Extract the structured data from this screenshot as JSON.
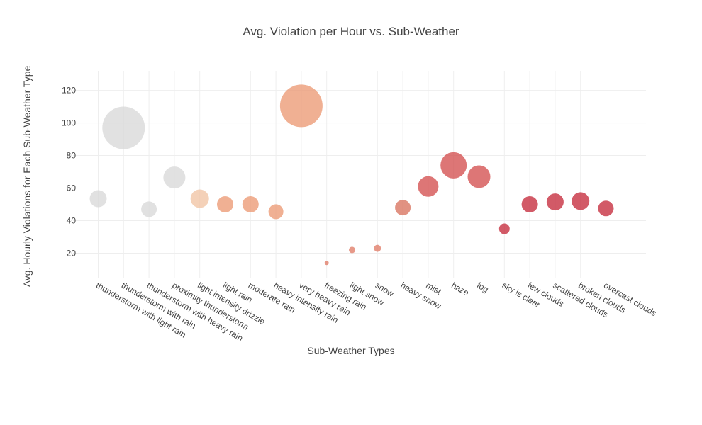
{
  "chart_data": {
    "type": "scatter",
    "title": "Avg. Violation per Hour vs. Sub-Weather",
    "xlabel": "Sub-Weather Types",
    "ylabel": "Avg. Hourly Violations for Each Sub-Weather Type",
    "ylim": [
      5,
      132
    ],
    "yticks": [
      20,
      40,
      60,
      80,
      100,
      120
    ],
    "grid": true,
    "legend": "none",
    "categories": [
      "thunderstorm with light rain",
      "thunderstorm with rain",
      "thunderstorm with heavy rain",
      "proximity thunderstorm",
      "light intensity drizzle",
      "light rain",
      "moderate rain",
      "heavy intensity rain",
      "very heavy rain",
      "freezing rain",
      "light snow",
      "snow",
      "heavy snow",
      "mist",
      "haze",
      "fog",
      "sky is clear",
      "few clouds",
      "scattered clouds",
      "broken clouds",
      "overcast clouds"
    ],
    "values": [
      53.5,
      97,
      47,
      66.5,
      53.5,
      50,
      50,
      45.5,
      110.5,
      14,
      22,
      23,
      48,
      61,
      74,
      67,
      35,
      50,
      51.5,
      52,
      47.5
    ],
    "marker_sizes": [
      24,
      60,
      22,
      31,
      26,
      23,
      23,
      21,
      60,
      6,
      9,
      10,
      22,
      29,
      37,
      32,
      15,
      23,
      24,
      25,
      22
    ],
    "colors": [
      "#d8d8d8",
      "#d8d8d8",
      "#d8d8d8",
      "#d8d8d8",
      "#f1c4a4",
      "#ec9a74",
      "#ec9a74",
      "#ec9a74",
      "#ec9a74",
      "#e07c68",
      "#e07c68",
      "#e07c68",
      "#d9735f",
      "#d4504f",
      "#d4504f",
      "#d4504f",
      "#c52b3c",
      "#c52b3c",
      "#c52b3c",
      "#c52b3c",
      "#c52b3c"
    ]
  }
}
